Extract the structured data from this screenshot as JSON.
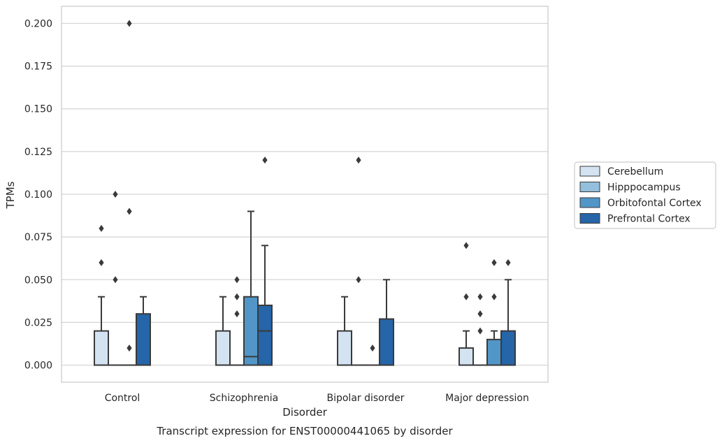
{
  "chart_data": {
    "type": "boxplot",
    "caption": "Transcript expression for ENST00000441065 by disorder",
    "xlabel": "Disorder",
    "ylabel": "TPMs",
    "ylim": [
      -0.01,
      0.21
    ],
    "yticks": [
      "0.000",
      "0.025",
      "0.050",
      "0.075",
      "0.100",
      "0.125",
      "0.150",
      "0.175",
      "0.200"
    ],
    "grid": "horizontal",
    "legend_position": "right",
    "categories": [
      "Control",
      "Schizophrenia",
      "Bipolar disorder",
      "Major depression"
    ],
    "series": [
      {
        "name": "Cerebellum",
        "color": "#d3e3f2",
        "boxes": [
          {
            "q1": 0.0,
            "median": 0.0,
            "q3": 0.02,
            "whisker_low": 0.0,
            "whisker_high": 0.04,
            "outliers": [
              0.06,
              0.08
            ]
          },
          {
            "q1": 0.0,
            "median": 0.0,
            "q3": 0.02,
            "whisker_low": 0.0,
            "whisker_high": 0.04,
            "outliers": []
          },
          {
            "q1": 0.0,
            "median": 0.0,
            "q3": 0.02,
            "whisker_low": 0.0,
            "whisker_high": 0.04,
            "outliers": []
          },
          {
            "q1": 0.0,
            "median": 0.0,
            "q3": 0.01,
            "whisker_low": 0.0,
            "whisker_high": 0.02,
            "outliers": [
              0.04,
              0.07
            ]
          }
        ]
      },
      {
        "name": "Hipppocampus",
        "color": "#94bfdd",
        "boxes": [
          {
            "q1": 0.0,
            "median": 0.0,
            "q3": 0.0,
            "whisker_low": 0.0,
            "whisker_high": 0.0,
            "outliers": [
              0.05,
              0.1
            ]
          },
          {
            "q1": 0.0,
            "median": 0.0,
            "q3": 0.0,
            "whisker_low": 0.0,
            "whisker_high": 0.0,
            "outliers": [
              0.03,
              0.04,
              0.05
            ]
          },
          {
            "q1": 0.0,
            "median": 0.0,
            "q3": 0.0,
            "whisker_low": 0.0,
            "whisker_high": 0.0,
            "outliers": [
              0.05,
              0.12
            ]
          },
          {
            "q1": 0.0,
            "median": 0.0,
            "q3": 0.0,
            "whisker_low": 0.0,
            "whisker_high": 0.0,
            "outliers": [
              0.02,
              0.03,
              0.04
            ]
          }
        ]
      },
      {
        "name": "Orbitofontal Cortex",
        "color": "#5296c7",
        "boxes": [
          {
            "q1": 0.0,
            "median": 0.0,
            "q3": 0.0,
            "whisker_low": 0.0,
            "whisker_high": 0.0,
            "outliers": [
              0.01,
              0.09,
              0.2
            ]
          },
          {
            "q1": 0.0,
            "median": 0.005,
            "q3": 0.04,
            "whisker_low": 0.0,
            "whisker_high": 0.09,
            "outliers": []
          },
          {
            "q1": 0.0,
            "median": 0.0,
            "q3": 0.0,
            "whisker_low": 0.0,
            "whisker_high": 0.0,
            "outliers": [
              0.01
            ]
          },
          {
            "q1": 0.0,
            "median": 0.0,
            "q3": 0.015,
            "whisker_low": 0.0,
            "whisker_high": 0.02,
            "outliers": [
              0.04,
              0.06
            ]
          }
        ]
      },
      {
        "name": "Prefrontal Cortex",
        "color": "#2565a8",
        "boxes": [
          {
            "q1": 0.0,
            "median": 0.0,
            "q3": 0.03,
            "whisker_low": 0.0,
            "whisker_high": 0.04,
            "outliers": []
          },
          {
            "q1": 0.0,
            "median": 0.02,
            "q3": 0.035,
            "whisker_low": 0.0,
            "whisker_high": 0.07,
            "outliers": [
              0.12
            ]
          },
          {
            "q1": 0.0,
            "median": 0.0,
            "q3": 0.027,
            "whisker_low": 0.0,
            "whisker_high": 0.05,
            "outliers": []
          },
          {
            "q1": 0.0,
            "median": 0.0,
            "q3": 0.02,
            "whisker_low": 0.0,
            "whisker_high": 0.05,
            "outliers": [
              0.06
            ]
          }
        ]
      }
    ]
  }
}
